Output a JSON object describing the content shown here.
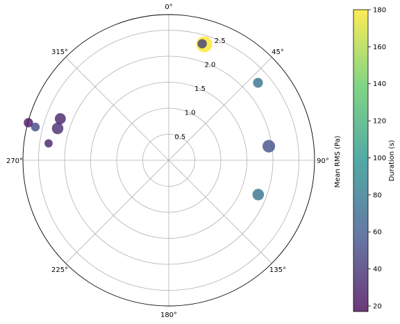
{
  "chart_data": {
    "type": "scatter",
    "projection": "polar",
    "theta_direction": "clockwise",
    "theta_zero": "top",
    "title": "",
    "theta_ticks": [
      "0°",
      "45°",
      "90°",
      "135°",
      "180°",
      "225°",
      "270°",
      "315°"
    ],
    "r_ticks": [
      0.5,
      1.0,
      1.5,
      2.0,
      2.5
    ],
    "r_tick_labels": [
      "0.5",
      "1.0",
      "1.5",
      "2.0",
      "2.5"
    ],
    "rlim": [
      0,
      2.8
    ],
    "radial_axis_label": "Mean RMS (Pa)",
    "grid": true,
    "colorbar": {
      "label": "Duration (s)",
      "min": 17,
      "max": 180,
      "ticks": [
        20,
        40,
        60,
        80,
        100,
        120,
        140,
        160,
        180
      ],
      "colormap": [
        "#440154",
        "#3b528b",
        "#21918c",
        "#5ec962",
        "#fde725"
      ]
    },
    "point_size_meaning": "marker size varies",
    "points": [
      {
        "theta_deg": 17,
        "r": 2.33,
        "duration": 180,
        "size": 1.0
      },
      {
        "theta_deg": 16,
        "r": 2.33,
        "duration": 45,
        "size": 0.4
      },
      {
        "theta_deg": 49,
        "r": 2.27,
        "duration": 75,
        "size": 0.45
      },
      {
        "theta_deg": 82,
        "r": 1.94,
        "duration": 55,
        "size": 0.7
      },
      {
        "theta_deg": 111,
        "r": 1.84,
        "duration": 75,
        "size": 0.6
      },
      {
        "theta_deg": 286,
        "r": 2.22,
        "duration": 35,
        "size": 0.6
      },
      {
        "theta_deg": 291,
        "r": 2.23,
        "duration": 30,
        "size": 0.55
      },
      {
        "theta_deg": 284,
        "r": 2.64,
        "duration": 50,
        "size": 0.35
      },
      {
        "theta_deg": 285,
        "r": 2.79,
        "duration": 25,
        "size": 0.4
      },
      {
        "theta_deg": 278,
        "r": 2.33,
        "duration": 30,
        "size": 0.3
      }
    ]
  }
}
